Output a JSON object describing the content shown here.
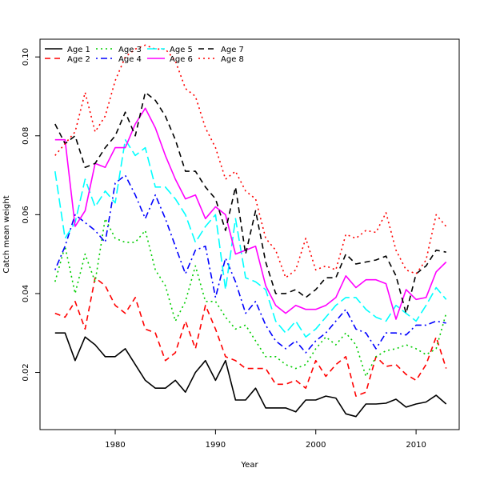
{
  "chart_data": {
    "type": "line",
    "title": "",
    "xlabel": "Year",
    "ylabel": "Catch mean weight",
    "xlim": [
      1972.5,
      2014.3
    ],
    "ylim": [
      0.0055,
      0.1045
    ],
    "xticks": [
      1980,
      1990,
      2000,
      2010
    ],
    "yticks": [
      0.02,
      0.04,
      0.06,
      0.08,
      0.1
    ],
    "xtick_labels": [
      "1980",
      "1990",
      "2000",
      "2010"
    ],
    "ytick_labels": [
      "0.02",
      "0.04",
      "0.06",
      "0.08",
      "0.10"
    ],
    "legend_position": "top-left",
    "grid": false,
    "x": [
      1974,
      1975,
      1976,
      1977,
      1978,
      1979,
      1980,
      1981,
      1982,
      1983,
      1984,
      1985,
      1986,
      1987,
      1988,
      1989,
      1990,
      1991,
      1992,
      1993,
      1994,
      1995,
      1996,
      1997,
      1998,
      1999,
      2000,
      2001,
      2002,
      2003,
      2004,
      2005,
      2006,
      2007,
      2008,
      2009,
      2010,
      2011,
      2012,
      2013
    ],
    "series": [
      {
        "name": "Age 1",
        "color": "#000000",
        "dash": "solid",
        "values": [
          0.03,
          0.03,
          0.023,
          0.029,
          0.027,
          0.024,
          0.024,
          0.026,
          0.022,
          0.018,
          0.016,
          0.016,
          0.018,
          0.015,
          0.02,
          0.023,
          0.018,
          0.023,
          0.013,
          0.013,
          0.016,
          0.011,
          0.011,
          0.011,
          0.01,
          0.013,
          0.013,
          0.014,
          0.0135,
          0.0095,
          0.0088,
          0.012,
          0.012,
          0.0122,
          0.0132,
          0.0112,
          0.012,
          0.0125,
          0.0142,
          0.012
        ]
      },
      {
        "name": "Age 2",
        "color": "#ff0000",
        "dash": "dashed",
        "values": [
          0.035,
          0.034,
          0.038,
          0.031,
          0.044,
          0.042,
          0.037,
          0.035,
          0.039,
          0.031,
          0.03,
          0.023,
          0.025,
          0.033,
          0.026,
          0.037,
          0.031,
          0.024,
          0.023,
          0.021,
          0.021,
          0.021,
          0.017,
          0.017,
          0.018,
          0.016,
          0.023,
          0.019,
          0.022,
          0.024,
          0.014,
          0.015,
          0.024,
          0.0215,
          0.022,
          0.0195,
          0.018,
          0.022,
          0.029,
          0.021
        ]
      },
      {
        "name": "Age 3",
        "color": "#00cd00",
        "dash": "dotted",
        "values": [
          0.043,
          0.052,
          0.04,
          0.05,
          0.043,
          0.059,
          0.054,
          0.053,
          0.053,
          0.056,
          0.046,
          0.042,
          0.033,
          0.038,
          0.047,
          0.038,
          0.038,
          0.034,
          0.031,
          0.032,
          0.028,
          0.024,
          0.024,
          0.022,
          0.021,
          0.022,
          0.026,
          0.029,
          0.027,
          0.03,
          0.027,
          0.019,
          0.024,
          0.0255,
          0.026,
          0.027,
          0.026,
          0.0245,
          0.026,
          0.035
        ]
      },
      {
        "name": "Age 4",
        "color": "#0000ff",
        "dash": "dotdash",
        "values": [
          0.046,
          0.052,
          0.06,
          0.058,
          0.056,
          0.053,
          0.068,
          0.07,
          0.065,
          0.059,
          0.065,
          0.059,
          0.052,
          0.045,
          0.051,
          0.052,
          0.039,
          0.049,
          0.043,
          0.035,
          0.038,
          0.032,
          0.028,
          0.026,
          0.028,
          0.025,
          0.028,
          0.03,
          0.033,
          0.036,
          0.031,
          0.03,
          0.026,
          0.03,
          0.03,
          0.0295,
          0.032,
          0.032,
          0.033,
          0.0325
        ]
      },
      {
        "name": "Age 5",
        "color": "#00ffff",
        "dash": "longdash",
        "values": [
          0.071,
          0.054,
          0.058,
          0.069,
          0.062,
          0.066,
          0.063,
          0.079,
          0.075,
          0.077,
          0.067,
          0.067,
          0.064,
          0.06,
          0.053,
          0.057,
          0.06,
          0.041,
          0.059,
          0.044,
          0.043,
          0.041,
          0.033,
          0.03,
          0.033,
          0.029,
          0.031,
          0.034,
          0.037,
          0.039,
          0.039,
          0.036,
          0.034,
          0.033,
          0.037,
          0.035,
          0.033,
          0.037,
          0.0415,
          0.0385
        ]
      },
      {
        "name": "Age 6",
        "color": "#ff00ff",
        "dash": "solid",
        "values": [
          0.079,
          0.079,
          0.057,
          0.061,
          0.073,
          0.072,
          0.077,
          0.077,
          0.083,
          0.087,
          0.082,
          0.075,
          0.069,
          0.064,
          0.065,
          0.059,
          0.062,
          0.06,
          0.05,
          0.051,
          0.052,
          0.042,
          0.037,
          0.035,
          0.037,
          0.036,
          0.036,
          0.037,
          0.039,
          0.0445,
          0.0415,
          0.0435,
          0.0435,
          0.0425,
          0.0335,
          0.041,
          0.0385,
          0.039,
          0.0455,
          0.048
        ]
      },
      {
        "name": "Age 7",
        "color": "#000000",
        "dash": "dashed",
        "values": [
          0.083,
          0.078,
          0.08,
          0.072,
          0.073,
          0.077,
          0.08,
          0.086,
          0.08,
          0.091,
          0.089,
          0.085,
          0.079,
          0.071,
          0.071,
          0.067,
          0.064,
          0.056,
          0.067,
          0.05,
          0.061,
          0.048,
          0.04,
          0.04,
          0.041,
          0.039,
          0.041,
          0.044,
          0.044,
          0.05,
          0.0475,
          0.048,
          0.0485,
          0.0495,
          0.0445,
          0.035,
          0.045,
          0.047,
          0.051,
          0.0505
        ]
      },
      {
        "name": "Age 8",
        "color": "#ff0000",
        "dash": "dotted",
        "values": [
          0.075,
          0.078,
          0.081,
          0.091,
          0.081,
          0.085,
          0.094,
          0.1,
          0.102,
          0.103,
          0.102,
          0.102,
          0.099,
          0.092,
          0.09,
          0.082,
          0.077,
          0.069,
          0.071,
          0.066,
          0.064,
          0.054,
          0.051,
          0.044,
          0.046,
          0.054,
          0.046,
          0.047,
          0.046,
          0.055,
          0.054,
          0.056,
          0.0555,
          0.0605,
          0.051,
          0.046,
          0.045,
          0.0485,
          0.06,
          0.057
        ]
      }
    ]
  }
}
